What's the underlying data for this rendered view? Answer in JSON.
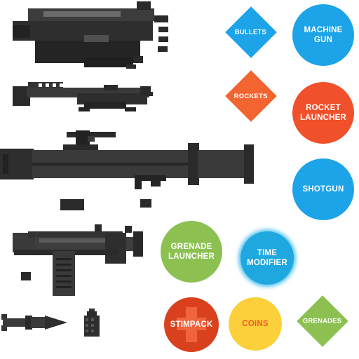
{
  "atlas": {
    "weapons": [
      {
        "id": "machine-gun-sprite",
        "kind": "machine gun"
      },
      {
        "id": "shotgun-sprite",
        "kind": "shotgun"
      },
      {
        "id": "rocket-launcher-sprite",
        "kind": "rocket launcher"
      },
      {
        "id": "grenade-launcher-sprite",
        "kind": "grenade launcher"
      },
      {
        "id": "rocket-projectile-sprite",
        "kind": "rocket"
      },
      {
        "id": "hand-grenade-sprite",
        "kind": "grenade"
      }
    ],
    "pickups": {
      "bullets": {
        "label": "BULLETS",
        "shape": "diamond",
        "color": "#1ca3e8"
      },
      "machine_gun": {
        "label": "MACHINE\nGUN",
        "shape": "circle",
        "color": "#1ca3e8"
      },
      "rockets": {
        "label": "ROCKETS",
        "shape": "diamond",
        "color": "#f26430"
      },
      "rocket_launcher": {
        "label": "ROCKET\nLAUNCHER",
        "shape": "circle",
        "color": "#f0502a"
      },
      "shotgun": {
        "label": "SHOTGUN",
        "shape": "circle",
        "color": "#1ca3e8"
      },
      "grenade_launcher": {
        "label": "GRENADE\nLAUNCHER",
        "shape": "circle",
        "color": "#8cc152"
      },
      "time_modifier": {
        "label": "TIME\nMODIFIER",
        "shape": "circle",
        "color": "#1fa8e0"
      },
      "stimpack": {
        "label": "STIMPACK",
        "shape": "circle",
        "color": "#d9411e",
        "icon": "medical-cross-icon",
        "icon_color": "#f0633c"
      },
      "coins": {
        "label": "COINS",
        "shape": "circle",
        "color": "#fbd03a",
        "text_color": "#f05a28"
      },
      "grenades": {
        "label": "GRENADES",
        "shape": "diamond",
        "color": "#8cc152"
      }
    }
  }
}
